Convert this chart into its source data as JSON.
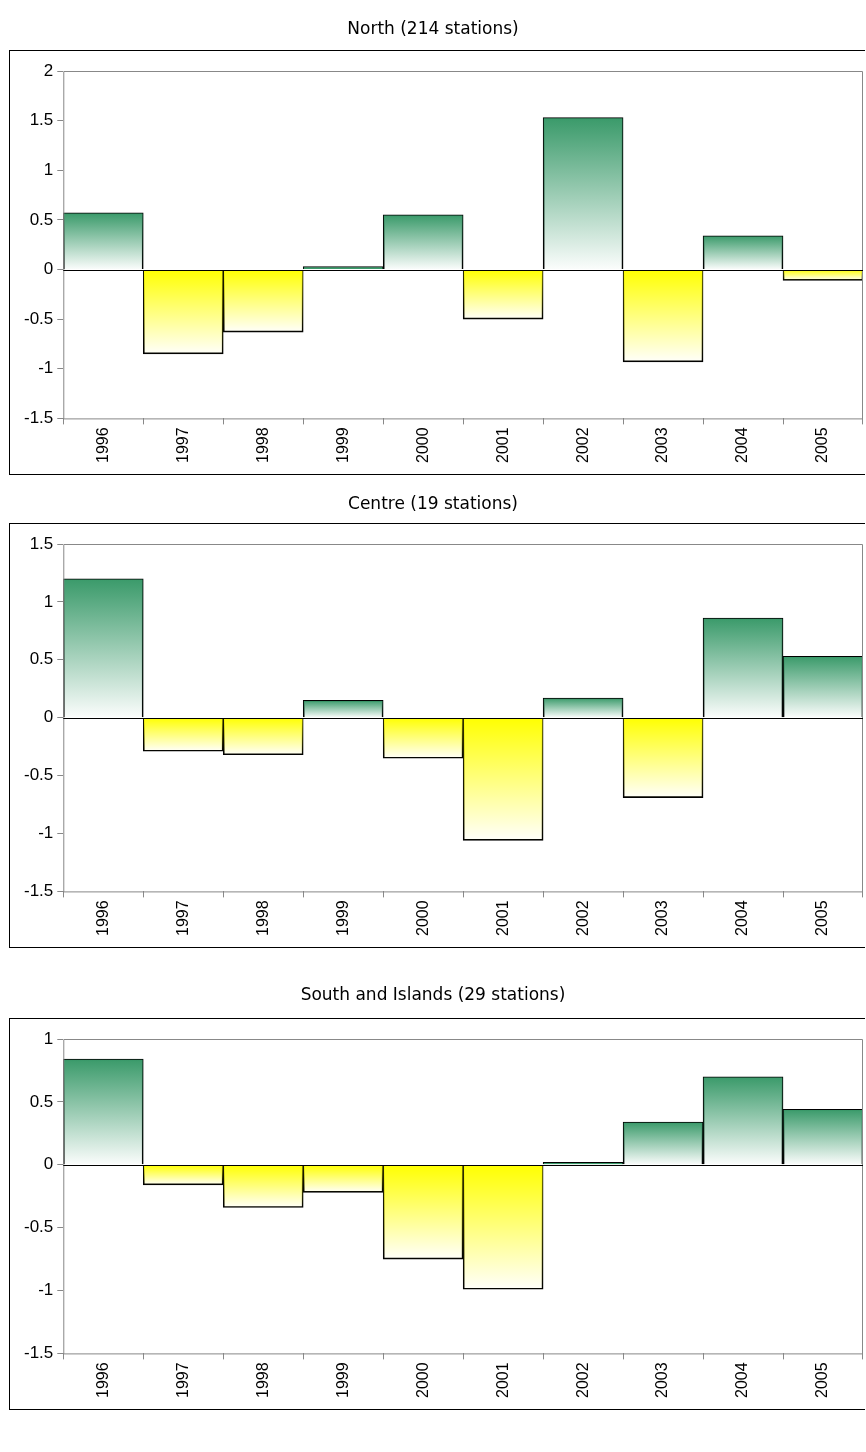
{
  "chart_data": [
    {
      "type": "bar",
      "title": "North (214 stations)",
      "categories": [
        "1996",
        "1997",
        "1998",
        "1999",
        "2000",
        "2001",
        "2002",
        "2003",
        "2004",
        "2005"
      ],
      "values": [
        0.57,
        -0.85,
        -0.63,
        0.03,
        0.55,
        -0.5,
        1.53,
        -0.93,
        0.34,
        -0.11
      ],
      "colors": [
        "#3a9a6a",
        "#ffff00",
        "#ffff00",
        "#3a9a6a",
        "#3a9a6a",
        "#ffff00",
        "#3a9a6a",
        "#ffff00",
        "#3a9a6a",
        "#ffff00"
      ],
      "ylim": [
        -1.5,
        2
      ],
      "yticks": [
        -1.5,
        -1,
        -0.5,
        0,
        0.5,
        1,
        1.5,
        2
      ]
    },
    {
      "type": "bar",
      "title": "Centre (19 stations)",
      "categories": [
        "1996",
        "1997",
        "1998",
        "1999",
        "2000",
        "2001",
        "2002",
        "2003",
        "2004",
        "2005"
      ],
      "values": [
        1.2,
        -0.29,
        -0.32,
        0.15,
        -0.35,
        -1.06,
        0.17,
        -0.69,
        0.86,
        0.53
      ],
      "colors": [
        "#3a9a6a",
        "#ffff00",
        "#ffff00",
        "#3a9a6a",
        "#ffff00",
        "#ffff00",
        "#3a9a6a",
        "#ffff00",
        "#3a9a6a",
        "#3a9a6a"
      ],
      "ylim": [
        -1.5,
        1.5
      ],
      "yticks": [
        -1.5,
        -1,
        -0.5,
        0,
        0.5,
        1,
        1.5
      ]
    },
    {
      "type": "bar",
      "title": "South and Islands (29 stations)",
      "categories": [
        "1996",
        "1997",
        "1998",
        "1999",
        "2000",
        "2001",
        "2002",
        "2003",
        "2004",
        "2005"
      ],
      "values": [
        0.84,
        -0.16,
        -0.34,
        -0.22,
        -0.75,
        -0.99,
        0.02,
        0.34,
        0.7,
        0.44
      ],
      "colors": [
        "#3a9a6a",
        "#ffff00",
        "#ffff00",
        "#ffff00",
        "#ffff00",
        "#ffff00",
        "#3a9a6a",
        "#3a9a6a",
        "#3a9a6a",
        "#3a9a6a"
      ],
      "ylim": [
        -1.5,
        1
      ],
      "yticks": [
        -1.5,
        -1,
        -0.5,
        0,
        0.5,
        1
      ]
    }
  ]
}
